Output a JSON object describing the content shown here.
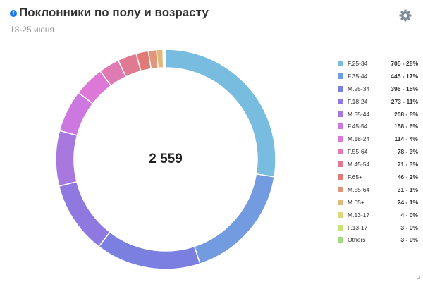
{
  "header": {
    "network_icon": "facebook-icon",
    "title": "Поклонники по полу и возрасту",
    "subtitle": "18-25 июня"
  },
  "toolbar": {
    "settings_icon": "gear-icon"
  },
  "chart_data": {
    "type": "pie",
    "donut": true,
    "center_label": "2 559",
    "legend_position": "right",
    "slices": [
      {
        "label": "F.25-34",
        "value": 705,
        "display": "705 - 28%",
        "color": "#78bde0"
      },
      {
        "label": "F.35-44",
        "value": 445,
        "display": "445 - 17%",
        "color": "#729cdf"
      },
      {
        "label": "M.25-34",
        "value": 396,
        "display": "396 - 15%",
        "color": "#7b7fe0"
      },
      {
        "label": "F.18-24",
        "value": 273,
        "display": "273 - 11%",
        "color": "#8f78e0"
      },
      {
        "label": "M.35-44",
        "value": 208,
        "display": "208 - 8%",
        "color": "#a878de"
      },
      {
        "label": "F.45-54",
        "value": 158,
        "display": "158 - 6%",
        "color": "#cc78e0"
      },
      {
        "label": "M.18-24",
        "value": 114,
        "display": "114 - 4%",
        "color": "#de78d6"
      },
      {
        "label": "F.55-64",
        "value": 78,
        "display": "78 - 3%",
        "color": "#e07ab2"
      },
      {
        "label": "M.45-54",
        "value": 71,
        "display": "71 - 3%",
        "color": "#e07a92"
      },
      {
        "label": "F.65+",
        "value": 46,
        "display": "46 - 2%",
        "color": "#e07a76"
      },
      {
        "label": "M.55-64",
        "value": 31,
        "display": "31 - 1%",
        "color": "#e0967a"
      },
      {
        "label": "M.65+",
        "value": 24,
        "display": "24 - 1%",
        "color": "#e0b87a"
      },
      {
        "label": "M.13-17",
        "value": 4,
        "display": "4 - 0%",
        "color": "#dfd57a"
      },
      {
        "label": "F.13-17",
        "value": 3,
        "display": "3 - 0%",
        "color": "#c8e07a"
      },
      {
        "label": "Others",
        "value": 3,
        "display": "3 - 0%",
        "color": "#a2dc7a"
      }
    ]
  }
}
